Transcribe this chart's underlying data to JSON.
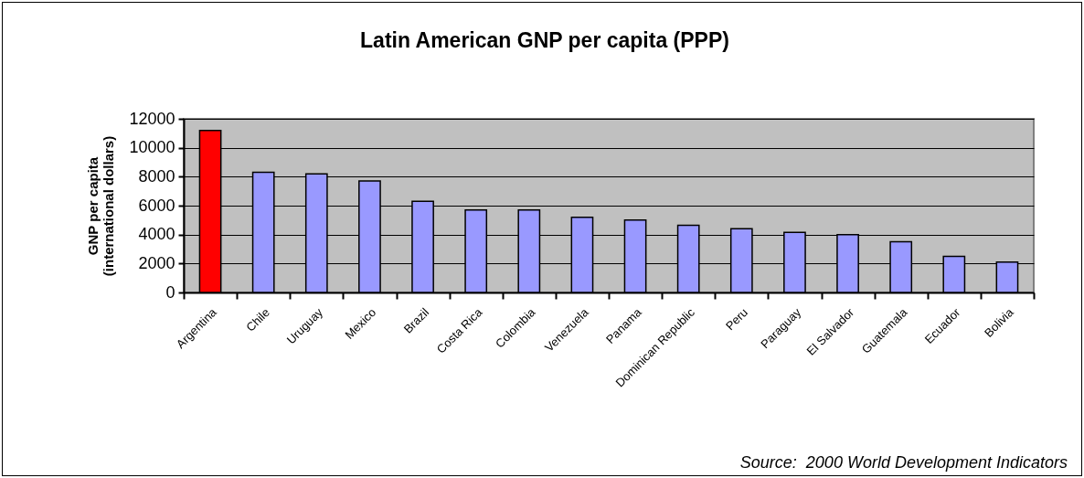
{
  "chart_data": {
    "type": "bar",
    "title": "Latin American GNP per capita (PPP)",
    "ylabel": "GNP per capita\n(international dollars)",
    "categories": [
      "Argentina",
      "Chile",
      "Uruguay",
      "Mexico",
      "Brazil",
      "Costa Rica",
      "Colombia",
      "Venezuela",
      "Panama",
      "Dominican Republic",
      "Peru",
      "Paraguay",
      "El Salvador",
      "Guatemala",
      "Ecuador",
      "Bolivia"
    ],
    "values": [
      11200,
      8300,
      8200,
      7700,
      6300,
      5700,
      5700,
      5200,
      5000,
      4650,
      4400,
      4150,
      4000,
      3500,
      2500,
      2100
    ],
    "colors": [
      "#ff0000",
      "#9999ff",
      "#9999ff",
      "#9999ff",
      "#9999ff",
      "#9999ff",
      "#9999ff",
      "#9999ff",
      "#9999ff",
      "#9999ff",
      "#9999ff",
      "#9999ff",
      "#9999ff",
      "#9999ff",
      "#9999ff",
      "#9999ff"
    ],
    "ylim": [
      0,
      12000
    ],
    "yticks": [
      0,
      2000,
      4000,
      6000,
      8000,
      10000,
      12000
    ],
    "grid": "y",
    "legend": false,
    "annotations": [
      "Source:  2000 World Development Indicators"
    ]
  }
}
